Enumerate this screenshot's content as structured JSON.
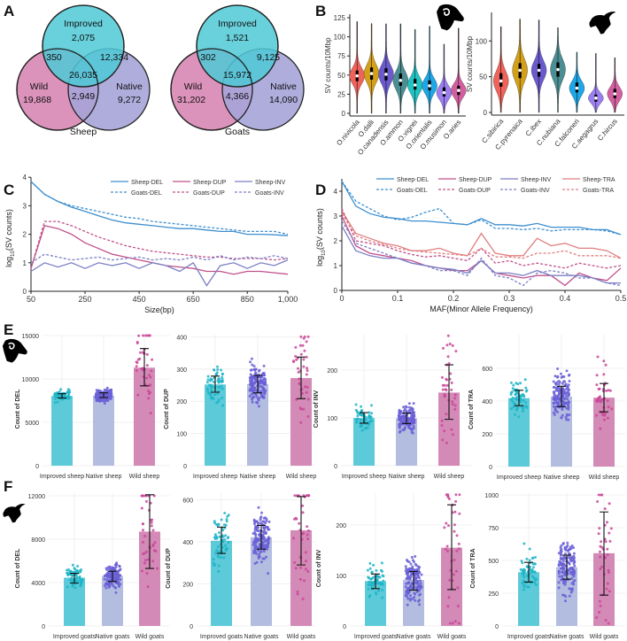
{
  "panel_labels": [
    "A",
    "B",
    "C",
    "D",
    "E",
    "F"
  ],
  "chart_data": [
    {
      "panel": "A",
      "type": "venn",
      "title": "Sheep",
      "sets": [
        "Improved",
        "Wild",
        "Native"
      ],
      "regions": {
        "improved_only": "2,075",
        "wild_only": "19,868",
        "native_only": "9,272",
        "improved_wild": "350",
        "improved_native": "12,334",
        "wild_native": "2,949",
        "all": "26,035"
      },
      "colors": {
        "Improved": "#4ec9d6",
        "Wild": "#d887b4",
        "Native": "#a6a4d8"
      }
    },
    {
      "panel": "A",
      "type": "venn",
      "title": "Goats",
      "sets": [
        "Improved",
        "Wild",
        "Native"
      ],
      "regions": {
        "improved_only": "1,521",
        "wild_only": "31,202",
        "native_only": "14,090",
        "improved_wild": "302",
        "improved_native": "9,125",
        "wild_native": "4,366",
        "all": "15,972"
      },
      "colors": {
        "Improved": "#4ec9d6",
        "Wild": "#d887b4",
        "Native": "#a6a4d8"
      }
    },
    {
      "panel": "B",
      "type": "violin",
      "icon": "sheep-head-icon",
      "ylabel": "SV counts/10Mbp",
      "ylim": [
        0,
        125
      ],
      "yticks": [
        "0",
        "25",
        "50",
        "75",
        "100",
        "125"
      ],
      "categories": [
        "O.nivicola",
        "O.dalli",
        "O.canadensis",
        "O.ammon",
        "O.vignei",
        "O.orientalis",
        "O.musimon",
        "O.aries"
      ],
      "median": [
        49,
        52,
        51,
        43,
        37,
        36,
        27,
        30
      ],
      "q1": [
        42,
        44,
        43,
        36,
        31,
        30,
        22,
        24
      ],
      "q3": [
        56,
        60,
        59,
        52,
        45,
        43,
        34,
        36
      ],
      "max": [
        120,
        118,
        117,
        117,
        110,
        114,
        91,
        112
      ],
      "colors": [
        "#f0625a",
        "#d4a017",
        "#6a5acd",
        "#4a8f93",
        "#1fc3c3",
        "#1ea7e6",
        "#9b7ef0",
        "#d45fa0"
      ]
    },
    {
      "panel": "B",
      "type": "violin",
      "icon": "goat-head-icon",
      "ylabel": "SV counts/10Mbp",
      "ylim": [
        0,
        135
      ],
      "yticks": [
        "0",
        "50",
        "100"
      ],
      "categories": [
        "C.sibirica",
        "C.pyrenaica",
        "C.ibex",
        "C.nubiana",
        "C.falconeri",
        "C.aegagrus",
        "C.hircus"
      ],
      "median": [
        44,
        59,
        59,
        60,
        34,
        20,
        26
      ],
      "q1": [
        36,
        48,
        50,
        50,
        28,
        15,
        20
      ],
      "q3": [
        55,
        69,
        68,
        70,
        42,
        25,
        33
      ],
      "max": [
        120,
        131,
        130,
        119,
        85,
        83,
        77
      ],
      "colors": [
        "#f0625a",
        "#d4a017",
        "#6a5acd",
        "#4a8f93",
        "#1ea7e6",
        "#9b7ef0",
        "#d45fa0"
      ]
    },
    {
      "panel": "C",
      "type": "line",
      "xlabel": "Size(bp)",
      "ylabel": "log10(SV counts)",
      "xlim": [
        50,
        1000
      ],
      "ylim": [
        0,
        4
      ],
      "xticks": [
        "50",
        "250",
        "450",
        "650",
        "850",
        "1,000"
      ],
      "yticks": [
        "0",
        "1",
        "2",
        "3",
        "4"
      ],
      "x": [
        50,
        100,
        150,
        200,
        250,
        300,
        350,
        400,
        450,
        500,
        550,
        600,
        650,
        700,
        750,
        800,
        850,
        900,
        950,
        1000
      ],
      "series": [
        {
          "name": "Sheep-DEL",
          "color": "#3d8fcf",
          "dash": false,
          "values": [
            3.85,
            3.4,
            3.15,
            2.95,
            2.8,
            2.65,
            2.5,
            2.4,
            2.35,
            2.3,
            2.25,
            2.2,
            2.2,
            2.15,
            2.1,
            2.1,
            2.0,
            2.0,
            1.98,
            1.95
          ]
        },
        {
          "name": "Sheep-DUP",
          "color": "#c0508a",
          "dash": false,
          "values": [
            0.8,
            2.3,
            2.2,
            2.0,
            1.7,
            1.5,
            1.3,
            1.2,
            1.1,
            1.0,
            0.9,
            0.85,
            0.8,
            0.7,
            0.7,
            0.6,
            0.7,
            0.7,
            0.65,
            0.6
          ]
        },
        {
          "name": "Sheep-INV",
          "color": "#7b7fc4",
          "dash": false,
          "values": [
            0.7,
            1.0,
            0.85,
            1.0,
            0.8,
            1.0,
            0.9,
            1.0,
            0.8,
            1.0,
            0.9,
            0.7,
            1.0,
            0.2,
            0.9,
            1.0,
            0.8,
            1.0,
            0.9,
            1.1
          ]
        },
        {
          "name": "Goats-DEL",
          "color": "#3d8fcf",
          "dash": true,
          "values": [
            3.85,
            3.4,
            3.15,
            3.0,
            2.9,
            2.8,
            2.7,
            2.6,
            2.55,
            2.45,
            2.4,
            2.35,
            2.3,
            2.25,
            2.2,
            2.15,
            2.1,
            2.1,
            2.1,
            2.0
          ]
        },
        {
          "name": "Goats-DUP",
          "color": "#c0508a",
          "dash": true,
          "values": [
            0.8,
            2.45,
            2.45,
            2.3,
            2.1,
            1.9,
            1.75,
            1.6,
            1.5,
            1.4,
            1.35,
            1.3,
            1.25,
            1.2,
            1.2,
            1.15,
            1.15,
            1.15,
            1.1,
            1.15
          ]
        },
        {
          "name": "Goats-INV",
          "color": "#7b7fc4",
          "dash": true,
          "values": [
            1.0,
            1.3,
            1.2,
            1.1,
            1.15,
            1.2,
            1.1,
            1.15,
            1.2,
            1.1,
            1.15,
            1.1,
            1.2,
            1.1,
            1.25,
            1.1,
            1.2,
            1.15,
            1.25,
            1.15
          ]
        }
      ],
      "legend": "top-right"
    },
    {
      "panel": "D",
      "type": "line",
      "xlabel": "MAF(Minor Allele Frequency)",
      "ylabel": "log10(SV counts)",
      "xlim": [
        0,
        0.5
      ],
      "ylim": [
        0,
        4.5
      ],
      "xticks": [
        "0",
        "0.1",
        "0.2",
        "0.3",
        "0.4",
        "0.5"
      ],
      "yticks": [
        "0",
        "1",
        "2",
        "3",
        "4"
      ],
      "x": [
        0,
        0.025,
        0.05,
        0.075,
        0.1,
        0.125,
        0.15,
        0.175,
        0.2,
        0.225,
        0.25,
        0.275,
        0.3,
        0.325,
        0.35,
        0.375,
        0.4,
        0.425,
        0.45,
        0.475,
        0.5
      ],
      "series": [
        {
          "name": "Sheep-DEL",
          "color": "#3d8fcf",
          "dash": false,
          "values": [
            4.4,
            3.4,
            3.1,
            2.95,
            2.9,
            2.8,
            2.8,
            2.75,
            2.7,
            2.65,
            2.9,
            2.65,
            2.65,
            2.6,
            2.7,
            2.55,
            2.55,
            2.55,
            2.45,
            2.45,
            2.25
          ]
        },
        {
          "name": "Sheep-DUP",
          "color": "#c0508a",
          "dash": false,
          "values": [
            3.0,
            1.8,
            1.5,
            1.4,
            1.3,
            1.2,
            1.0,
            0.9,
            0.8,
            0.8,
            1.2,
            0.7,
            0.6,
            0.5,
            0.6,
            0.6,
            0.2,
            0.7,
            0.5,
            0.4,
            0.9
          ]
        },
        {
          "name": "Sheep-INV",
          "color": "#7b7fc4",
          "dash": false,
          "values": [
            2.6,
            1.6,
            1.4,
            1.3,
            1.3,
            1.1,
            1.0,
            0.9,
            0.85,
            0.7,
            1.2,
            0.7,
            0.7,
            0.6,
            0.8,
            0.6,
            0.6,
            0.6,
            0.5,
            0.3,
            0.3
          ]
        },
        {
          "name": "Sheep-TRA",
          "color": "#e07f80",
          "dash": false,
          "values": [
            3.2,
            2.3,
            2.1,
            1.9,
            1.8,
            1.6,
            1.6,
            1.7,
            1.5,
            1.4,
            2.3,
            1.5,
            1.4,
            1.4,
            2.1,
            1.8,
            1.9,
            1.7,
            1.7,
            1.6,
            1.3
          ]
        },
        {
          "name": "Goats-DEL",
          "color": "#3d8fcf",
          "dash": true,
          "values": [
            4.4,
            3.6,
            3.3,
            3.0,
            2.85,
            2.95,
            3.15,
            3.3,
            2.7,
            2.65,
            2.85,
            2.5,
            2.5,
            2.45,
            2.5,
            2.4,
            2.45,
            2.45,
            2.45,
            2.4,
            2.25
          ]
        },
        {
          "name": "Goats-DUP",
          "color": "#c0508a",
          "dash": true,
          "values": [
            3.3,
            2.0,
            1.9,
            1.8,
            1.6,
            1.45,
            1.35,
            1.4,
            1.3,
            1.2,
            1.7,
            1.1,
            1.2,
            1.0,
            1.1,
            1.0,
            0.9,
            1.1,
            1.0,
            0.9,
            1.0
          ]
        },
        {
          "name": "Goats-INV",
          "color": "#7b7fc4",
          "dash": true,
          "values": [
            2.8,
            1.9,
            1.7,
            1.5,
            1.3,
            1.1,
            1.0,
            0.8,
            0.8,
            0.6,
            1.3,
            0.6,
            0.5,
            0.2,
            0.7,
            0.8,
            0.7,
            0.5,
            0.5,
            0.3,
            0.2
          ]
        },
        {
          "name": "Goats-TRA",
          "color": "#e07f80",
          "dash": true,
          "values": [
            3.1,
            2.2,
            2.0,
            1.85,
            1.7,
            1.6,
            1.55,
            1.5,
            1.45,
            1.4,
            1.7,
            1.35,
            1.35,
            1.3,
            1.5,
            1.5,
            1.6,
            1.4,
            1.4,
            1.4,
            1.3
          ]
        }
      ],
      "legend": "top-right"
    },
    {
      "panel": "E",
      "type": "bar",
      "icon": "sheep-head-icon",
      "ylabel": "Count of DEL",
      "categories": [
        "Improved sheep",
        "Native sheep",
        "Wild sheep"
      ],
      "values": [
        8050,
        8100,
        11300
      ],
      "error_low": [
        7800,
        7850,
        9200
      ],
      "error_high": [
        8300,
        8400,
        13500
      ],
      "yticks": [
        "0",
        "5000",
        "10000",
        "15000"
      ],
      "ylim": [
        0,
        15000
      ]
    },
    {
      "panel": "E",
      "type": "bar",
      "ylabel": "Count of DUP",
      "categories": [
        "Improved sheep",
        "Native sheep",
        "Wild sheep"
      ],
      "values": [
        252,
        253,
        272
      ],
      "error_low": [
        228,
        226,
        208
      ],
      "error_high": [
        278,
        280,
        337
      ],
      "yticks": [
        "0",
        "100",
        "200",
        "300",
        "400"
      ],
      "ylim": [
        0,
        400
      ]
    },
    {
      "panel": "E",
      "type": "bar",
      "ylabel": "Count of INV",
      "categories": [
        "Improved sheep",
        "Native sheep",
        "Wild sheep"
      ],
      "values": [
        100,
        99,
        153
      ],
      "error_low": [
        89,
        88,
        97
      ],
      "error_high": [
        111,
        110,
        211
      ],
      "yticks": [
        "0",
        "100",
        "200"
      ],
      "ylim": [
        0,
        280
      ]
    },
    {
      "panel": "E",
      "type": "bar",
      "ylabel": "Count of TRA",
      "categories": [
        "Improved sheep",
        "Native sheep",
        "Wild sheep"
      ],
      "values": [
        418,
        428,
        421
      ],
      "error_low": [
        372,
        366,
        334
      ],
      "error_high": [
        466,
        490,
        507
      ],
      "yticks": [
        "0",
        "200",
        "400",
        "600"
      ],
      "ylim": [
        0,
        800
      ]
    },
    {
      "panel": "F",
      "type": "bar",
      "icon": "goat-head-icon",
      "ylabel": "Count of DEL",
      "categories": [
        "Improved goats",
        "Native goats",
        "Wild goats"
      ],
      "values": [
        4450,
        4600,
        8700
      ],
      "error_low": [
        3950,
        4100,
        5300
      ],
      "error_high": [
        4850,
        5050,
        12100
      ],
      "yticks": [
        "0",
        "4000",
        "8000",
        "12000"
      ],
      "ylim": [
        0,
        12000
      ]
    },
    {
      "panel": "F",
      "type": "bar",
      "ylabel": "Count of DUP",
      "categories": [
        "Improved goats",
        "Native goats",
        "Wild goats"
      ],
      "values": [
        405,
        422,
        455
      ],
      "error_low": [
        345,
        365,
        290
      ],
      "error_high": [
        470,
        478,
        615
      ],
      "yticks": [
        "0",
        "200",
        "400",
        "600"
      ],
      "ylim": [
        0,
        620
      ]
    },
    {
      "panel": "F",
      "type": "bar",
      "ylabel": "Count of INV",
      "categories": [
        "Improved goats",
        "Native goats",
        "Wild goats"
      ],
      "values": [
        89,
        91,
        155
      ],
      "error_low": [
        74,
        71,
        72
      ],
      "error_high": [
        103,
        108,
        240
      ],
      "yticks": [
        "0",
        "100",
        "200"
      ],
      "ylim": [
        0,
        260
      ]
    },
    {
      "panel": "F",
      "type": "bar",
      "ylabel": "Count of TRA",
      "categories": [
        "Improved goats",
        "Native goats",
        "Wild goats"
      ],
      "values": [
        410,
        448,
        555
      ],
      "error_low": [
        335,
        357,
        235
      ],
      "error_high": [
        485,
        540,
        870
      ],
      "yticks": [
        "0",
        "250",
        "500",
        "750",
        "1000"
      ],
      "ylim": [
        0,
        1000
      ]
    }
  ],
  "bar_colors": {
    "improved": "#5ccad8",
    "native": "#b3bde0",
    "wild": "#d38ab6"
  },
  "point_colors": {
    "improved": "#1fb5c8",
    "native": "#6a5fd6",
    "wild": "#c9479a"
  }
}
